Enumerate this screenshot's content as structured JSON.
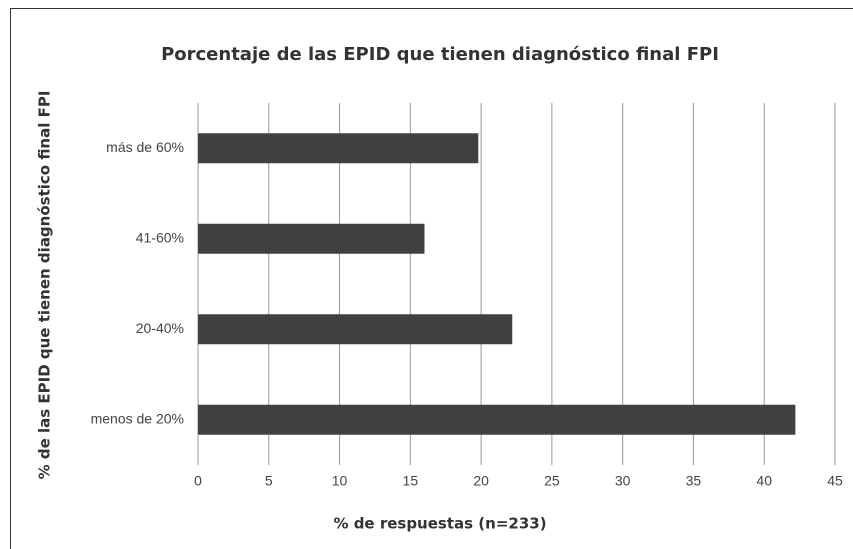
{
  "chart_data": {
    "type": "barh",
    "title": "Porcentaje de las EPID que tienen diagnóstico final FPI",
    "xlabel": "% de respuestas (n=233)",
    "ylabel": "% de las EPID que tienen diagnóstico final FPI",
    "categories": [
      "más de 60%",
      "41-60%",
      "20-40%",
      "menos de 20%"
    ],
    "values": [
      19.8,
      16.0,
      22.2,
      42.2
    ],
    "color": "#404040",
    "xlim": [
      0,
      45
    ],
    "xticks": [
      0,
      5,
      10,
      15,
      20,
      25,
      30,
      35,
      40,
      45
    ],
    "grid": true
  }
}
